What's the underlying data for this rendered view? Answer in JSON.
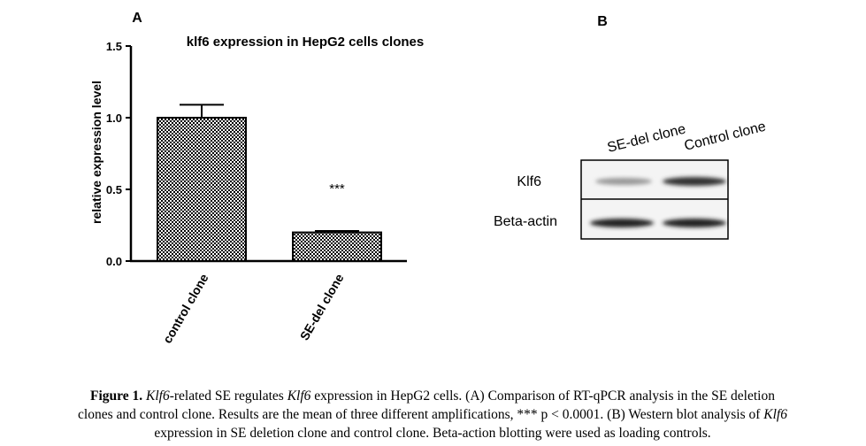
{
  "chart_data": {
    "type": "bar",
    "panel_label": "A",
    "title": "klf6 expression in HepG2 cells clones",
    "ylabel": "relative expression level",
    "categories": [
      "control clone",
      "SE-del clone"
    ],
    "values": [
      1.0,
      0.2
    ],
    "errors": [
      0.09,
      0.01
    ],
    "annotation": "***",
    "ylim": [
      0,
      1.5
    ],
    "yticks": [
      {
        "value": 0,
        "label": "0.0"
      },
      0.5,
      {
        "value": 1,
        "label": "1.0"
      },
      1.5
    ],
    "color": "#000000"
  },
  "panel_b": {
    "label": "B",
    "lanes": [
      "SE-del clone",
      "Control clone"
    ],
    "rows": [
      "Klf6",
      "Beta-actin"
    ]
  },
  "caption": [
    [
      {
        "text": "Figure 1. ",
        "bold": true
      },
      {
        "text": "Klf6",
        "italic": true
      },
      {
        "text": "-related SE regulates "
      },
      {
        "text": "Klf6",
        "italic": true
      },
      {
        "text": " expression in HepG2 cells. (A) Comparison of RT-qPCR analysis in the SE deletion"
      }
    ],
    [
      {
        "text": "clones and control clone. Results are the mean of three different amplifications, *** p < 0.0001. (B) Western blot analysis of "
      },
      {
        "text": "Klf6",
        "italic": true
      }
    ],
    [
      {
        "text": "expression in SE deletion clone and control clone. Beta-action blotting were used as loading controls."
      }
    ]
  ]
}
